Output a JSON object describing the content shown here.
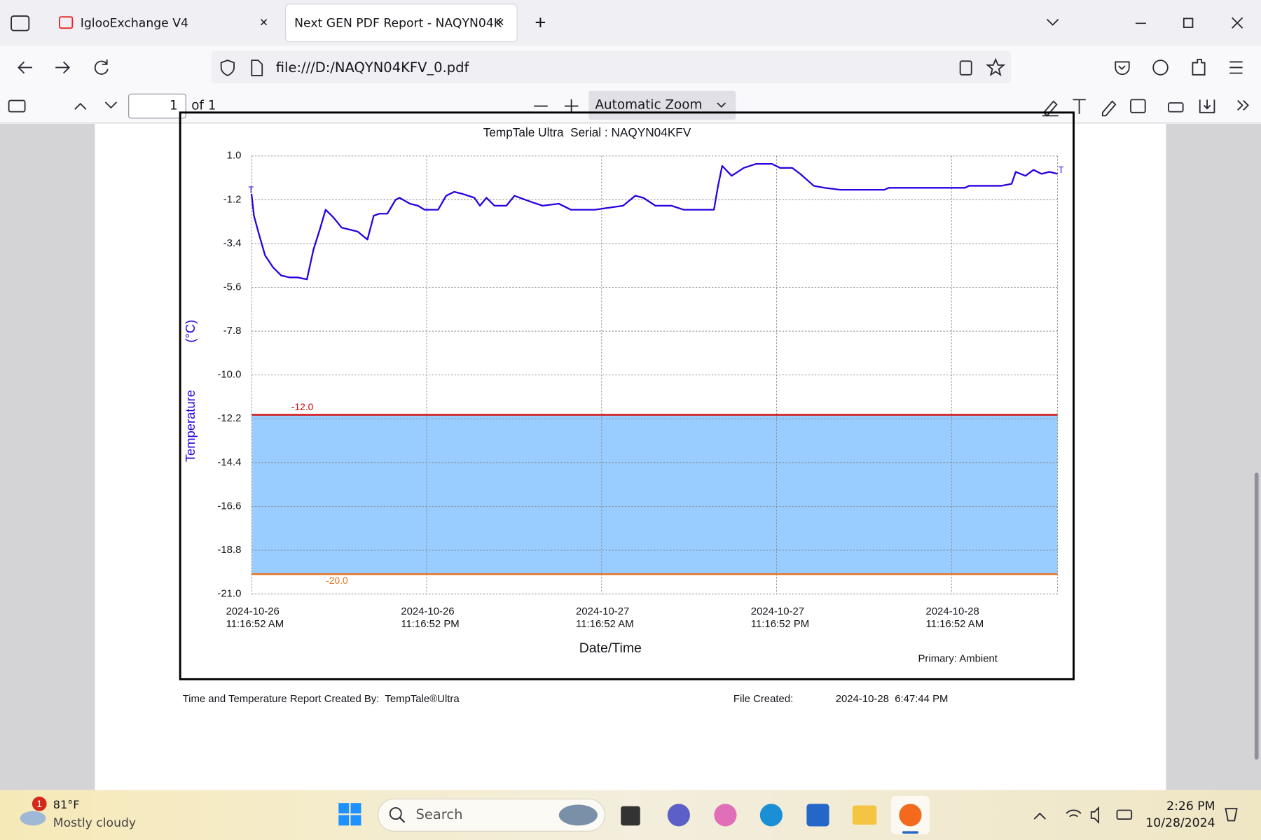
{
  "browser": {
    "tabs": [
      "IglooExchange V4",
      "Next GEN PDF Report - NAQYN04K"
    ],
    "url": "file:///D:/NAQYN04KFV_0.pdf"
  },
  "pdf_toolbar": {
    "page": "1",
    "page_count": "of 1",
    "zoom": "Automatic Zoom"
  },
  "chart_data": {
    "type": "line",
    "title": "TempTale Ultra  Serial : NAQYN04KFV",
    "y_label": "Temperature",
    "y_unit": "(°C)",
    "x_label": "Date/Time",
    "note": "Primary: Ambient",
    "markers": [
      "T",
      "T"
    ],
    "color": "#2a00e0",
    "grid": true,
    "xlim": [
      "2024-10-26T11:16:52",
      "2024-10-28T18:33"
    ],
    "xticks": [
      {
        "value": "2024-10-26T11:16:52",
        "label": "2024-10-26\n11:16:52 AM"
      },
      {
        "value": "2024-10-26T23:16:52",
        "label": "2024-10-26\n11:16:52 PM"
      },
      {
        "value": "2024-10-27T11:16:52",
        "label": "2024-10-27\n11:16:52 AM"
      },
      {
        "value": "2024-10-27T23:16:52",
        "label": "2024-10-27\n11:16:52 PM"
      },
      {
        "value": "2024-10-28T11:16:52",
        "label": "2024-10-28\n11:16:52 AM"
      }
    ],
    "ylim": [
      -21,
      1
    ],
    "yticks": [
      {
        "value": 1,
        "label": "1.0"
      },
      -1.2,
      -3.4,
      -5.6,
      -7.8,
      {
        "value": -10,
        "label": "-10.0"
      },
      -12.2,
      -14.4,
      -16.6,
      -18.8,
      {
        "value": -21,
        "label": "-21.0"
      }
    ],
    "limits": [
      {
        "value": -12,
        "label": "-12.0",
        "color": "#d40000"
      },
      {
        "value": -20,
        "label": "-20.0",
        "color": "#e8701a"
      }
    ],
    "band_color": "#99ccff",
    "x": [
      "2024-10-26T11:16",
      "2024-10-26T11:26",
      "2024-10-26T11:46",
      "2024-10-26T12:12",
      "2024-10-26T12:45",
      "2024-10-26T13:18",
      "2024-10-26T13:52",
      "2024-10-26T14:25",
      "2024-10-26T15:04",
      "2024-10-26T15:31",
      "2024-10-26T15:57",
      "2024-10-26T16:21",
      "2024-10-26T16:54",
      "2024-10-26T17:27",
      "2024-10-26T18:00",
      "2024-10-26T18:33",
      "2024-10-26T19:13",
      "2024-10-26T19:39",
      "2024-10-26T20:02",
      "2024-10-26T20:35",
      "2024-10-26T21:09",
      "2024-10-26T21:25",
      "2024-10-26T22:08",
      "2024-10-26T22:41",
      "2024-10-26T23:08",
      "2024-10-27T00:04",
      "2024-10-27T00:37",
      "2024-10-27T01:10",
      "2024-10-27T01:43",
      "2024-10-27T02:33",
      "2024-10-27T02:56",
      "2024-10-27T03:23",
      "2024-10-27T03:56",
      "2024-10-27T04:45",
      "2024-10-27T05:18",
      "2024-10-27T06:25",
      "2024-10-27T07:14",
      "2024-10-27T08:21",
      "2024-10-27T09:10",
      "2024-10-27T10:49",
      "2024-10-27T12:45",
      "2024-10-27T13:35",
      "2024-10-27T14:08",
      "2024-10-27T14:58",
      "2024-10-27T16:04",
      "2024-10-27T16:54",
      "2024-10-27T18:59",
      "2024-10-27T19:16",
      "2024-10-27T19:33",
      "2024-10-27T20:12",
      "2024-10-27T21:02",
      "2024-10-27T21:52",
      "2024-10-27T22:58",
      "2024-10-27T23:31",
      "2024-10-28T00:21",
      "2024-10-28T00:54",
      "2024-10-28T01:50",
      "2024-10-28T02:33",
      "2024-10-28T03:39",
      "2024-10-28T06:41",
      "2024-10-28T06:58",
      "2024-10-28T12:12",
      "2024-10-28T12:29",
      "2024-10-28T14:41",
      "2024-10-28T15:24",
      "2024-10-28T15:41",
      "2024-10-28T16:21",
      "2024-10-28T16:54",
      "2024-10-28T17:27",
      "2024-10-28T18:00",
      "2024-10-28T18:33"
    ],
    "values": [
      -0.9,
      -2.0,
      -2.9,
      -4.0,
      -4.6,
      -5.0,
      -5.1,
      -5.1,
      -5.2,
      -3.7,
      -2.7,
      -1.7,
      -2.1,
      -2.6,
      -2.7,
      -2.8,
      -3.2,
      -2.0,
      -1.9,
      -1.9,
      -1.2,
      -1.1,
      -1.4,
      -1.5,
      -1.7,
      -1.7,
      -1.0,
      -0.8,
      -0.9,
      -1.1,
      -1.5,
      -1.1,
      -1.5,
      -1.5,
      -1.0,
      -1.3,
      -1.5,
      -1.4,
      -1.7,
      -1.7,
      -1.5,
      -1.0,
      -1.1,
      -1.5,
      -1.5,
      -1.7,
      -1.7,
      -0.5,
      0.5,
      0.0,
      0.4,
      0.6,
      0.6,
      0.4,
      0.4,
      0.1,
      -0.5,
      -0.6,
      -0.7,
      -0.7,
      -0.6,
      -0.6,
      -0.5,
      -0.5,
      -0.4,
      0.2,
      0.0,
      0.3,
      0.1,
      0.2,
      0.1
    ]
  },
  "report_footer": {
    "created_by": "Time and Temperature Report Created By:  TempTale®Ultra",
    "file_created_label": "File Created:",
    "file_created": "2024-10-28  6:47:44 PM"
  },
  "taskbar": {
    "weather_badge": "1",
    "temperature": "81°F",
    "weather": "Mostly cloudy",
    "search": "Search",
    "time": "2:26 PM",
    "date": "10/28/2024"
  }
}
